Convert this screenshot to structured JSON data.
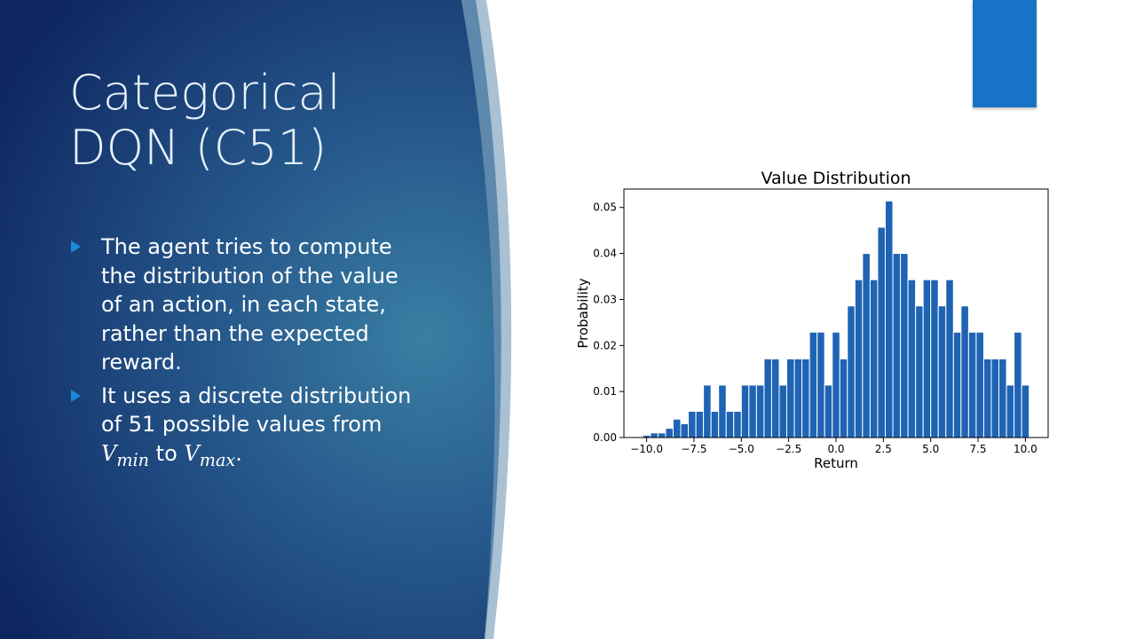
{
  "slide": {
    "title_lines": [
      "Categorical",
      "DQN (C51)"
    ],
    "bullet1_lines": [
      "The agent tries to compute",
      "the distribution of the value",
      "of an action, in each state,",
      "rather than the expected",
      "reward."
    ],
    "bullet2_lines": [
      "It uses a discrete distribution",
      "of 51 possible values from"
    ],
    "bullet2_math": {
      "v1": "V",
      "v1_sub": "min",
      "connector": " to ",
      "v2": "V",
      "v2_sub": "max",
      "end": "."
    },
    "colors": {
      "accent": "#1873c8",
      "bar": "#1f63b4",
      "title": "#e6f1fb"
    },
    "icon": "triangle-bullet-icon"
  },
  "chart_data": {
    "type": "bar",
    "title": "Value Distribution",
    "xlabel": "Return",
    "ylabel": "Probability",
    "x": [
      -10.0,
      -9.6,
      -9.2,
      -8.8,
      -8.4,
      -8.0,
      -7.6,
      -7.2,
      -6.8,
      -6.4,
      -6.0,
      -5.6,
      -5.2,
      -4.8,
      -4.4,
      -4.0,
      -3.6,
      -3.2,
      -2.8,
      -2.4,
      -2.0,
      -1.6,
      -1.2,
      -0.8,
      -0.4,
      0.0,
      0.4,
      0.8,
      1.2,
      1.6,
      2.0,
      2.4,
      2.8,
      3.2,
      3.6,
      4.0,
      4.4,
      4.8,
      5.2,
      5.6,
      6.0,
      6.4,
      6.8,
      7.2,
      7.6,
      8.0,
      8.4,
      8.8,
      9.2,
      9.6,
      10.0
    ],
    "values": [
      0.0005,
      0.001,
      0.001,
      0.002,
      0.004,
      0.003,
      0.0057,
      0.0057,
      0.0114,
      0.0057,
      0.0114,
      0.0057,
      0.0057,
      0.0114,
      0.0114,
      0.0114,
      0.0171,
      0.0171,
      0.0114,
      0.0171,
      0.0171,
      0.0171,
      0.0229,
      0.0229,
      0.0114,
      0.0229,
      0.0171,
      0.0286,
      0.0343,
      0.04,
      0.0343,
      0.0457,
      0.0514,
      0.04,
      0.04,
      0.0343,
      0.0286,
      0.0343,
      0.0343,
      0.0286,
      0.0343,
      0.0229,
      0.0286,
      0.0229,
      0.0229,
      0.0171,
      0.0171,
      0.0171,
      0.0114,
      0.0229,
      0.0114
    ],
    "xticks": [
      -10.0,
      -7.5,
      -5.0,
      -2.5,
      0.0,
      2.5,
      5.0,
      7.5,
      10.0
    ],
    "xtick_labels": [
      "−10.0",
      "−7.5",
      "−5.0",
      "−2.5",
      "0.0",
      "2.5",
      "5.0",
      "7.5",
      "10.0"
    ],
    "yticks": [
      0.0,
      0.01,
      0.02,
      0.03,
      0.04,
      0.05
    ],
    "ytick_labels": [
      "0.00",
      "0.01",
      "0.02",
      "0.03",
      "0.04",
      "0.05"
    ],
    "xlim": [
      -11.2,
      11.2
    ],
    "ylim": [
      0,
      0.054
    ],
    "grid": false,
    "legend": "none",
    "bar_color": "#1f63b4"
  }
}
